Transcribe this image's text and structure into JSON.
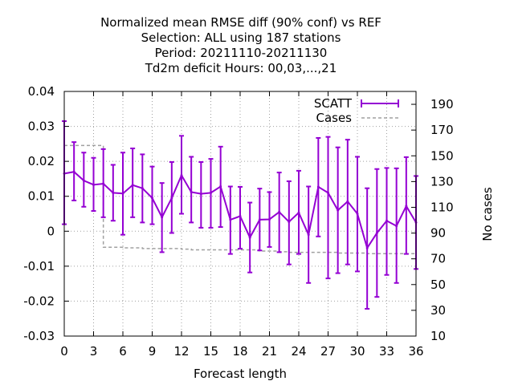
{
  "chart_data": {
    "type": "line",
    "title_lines": [
      "Normalized mean RMSE diff (90% conf) vs REF",
      "Selection: ALL using   187 stations",
      "Period: 20211110-20211130",
      "Td2m deficit   Hours:  00,03,...,21"
    ],
    "xlabel": "Forecast length",
    "ylabel": "",
    "y2label": "No cases",
    "xlim": [
      0,
      36
    ],
    "ylim": [
      -0.03,
      0.04
    ],
    "y2lim": [
      10,
      200
    ],
    "xticks": [
      "0",
      "3",
      "6",
      "9",
      "12",
      "15",
      "18",
      "21",
      "24",
      "27",
      "30",
      "33",
      "36"
    ],
    "yticks": [
      "0.04",
      "0.03",
      "0.02",
      "0.01",
      "0",
      "-0.01",
      "-0.02",
      "-0.03"
    ],
    "y2ticks": [
      "190",
      "170",
      "150",
      "130",
      "110",
      "90",
      "70",
      "50",
      "30",
      "10"
    ],
    "grid": true,
    "legend_position": "top-right",
    "series": [
      {
        "name": "SCATT",
        "color": "#9400d3",
        "style": "errorbars-line",
        "axis": "left",
        "x": [
          0,
          1,
          2,
          3,
          4,
          5,
          6,
          7,
          8,
          9,
          10,
          11,
          12,
          13,
          14,
          15,
          16,
          17,
          18,
          19,
          20,
          21,
          22,
          23,
          24,
          25,
          26,
          27,
          28,
          29,
          30,
          31,
          32,
          33,
          34,
          35,
          36
        ],
        "y": [
          0.0165,
          0.017,
          0.0145,
          0.0133,
          0.0136,
          0.011,
          0.0108,
          0.0132,
          0.0123,
          0.0095,
          0.004,
          0.0095,
          0.016,
          0.0112,
          0.0107,
          0.011,
          0.0128,
          0.0033,
          0.0043,
          -0.0018,
          0.0033,
          0.0034,
          0.0055,
          0.0027,
          0.0053,
          -0.001,
          0.0127,
          0.011,
          0.006,
          0.0085,
          0.005,
          -0.0048,
          -0.0005,
          0.003,
          0.0015,
          0.0072,
          0.0025
        ],
        "low": [
          0.002,
          0.0088,
          0.007,
          0.0058,
          0.004,
          0.003,
          -0.001,
          0.004,
          0.0025,
          0.002,
          -0.006,
          -0.0005,
          0.005,
          0.0025,
          0.001,
          0.001,
          0.0012,
          -0.0065,
          -0.005,
          -0.0118,
          -0.0055,
          -0.0045,
          -0.006,
          -0.0095,
          -0.0065,
          -0.0148,
          -0.0015,
          -0.0135,
          -0.012,
          -0.0095,
          -0.0115,
          -0.0222,
          -0.0188,
          -0.0125,
          -0.0148,
          -0.0065,
          -0.0108
        ],
        "high": [
          0.0315,
          0.0255,
          0.0225,
          0.021,
          0.0235,
          0.019,
          0.0225,
          0.0237,
          0.022,
          0.0185,
          0.0138,
          0.0198,
          0.0273,
          0.0213,
          0.0198,
          0.0207,
          0.0242,
          0.0128,
          0.0127,
          0.0082,
          0.0122,
          0.0112,
          0.0168,
          0.0143,
          0.0173,
          0.0128,
          0.0267,
          0.027,
          0.024,
          0.0262,
          0.0213,
          0.0123,
          0.0178,
          0.0181,
          0.018,
          0.0212,
          0.0158
        ]
      },
      {
        "name": "Cases",
        "color": "#a0a0a0",
        "style": "dashed-step",
        "axis": "right",
        "x": [
          0,
          1,
          2,
          3,
          4,
          5,
          6,
          7,
          8,
          9,
          10,
          11,
          12,
          13,
          14,
          15,
          16,
          17,
          18,
          19,
          20,
          21,
          22,
          23,
          24,
          25,
          26,
          27,
          28,
          29,
          30,
          31,
          32,
          33,
          34,
          35,
          36
        ],
        "y": [
          158,
          158,
          158,
          158,
          79,
          79,
          78.5,
          78.5,
          78,
          78,
          78,
          78,
          77.5,
          77,
          77,
          77,
          77,
          77,
          77,
          77,
          76,
          76,
          75.5,
          75,
          75,
          75,
          75,
          75,
          74.5,
          74.5,
          74.5,
          74,
          74,
          74,
          74,
          74,
          74
        ]
      }
    ]
  }
}
